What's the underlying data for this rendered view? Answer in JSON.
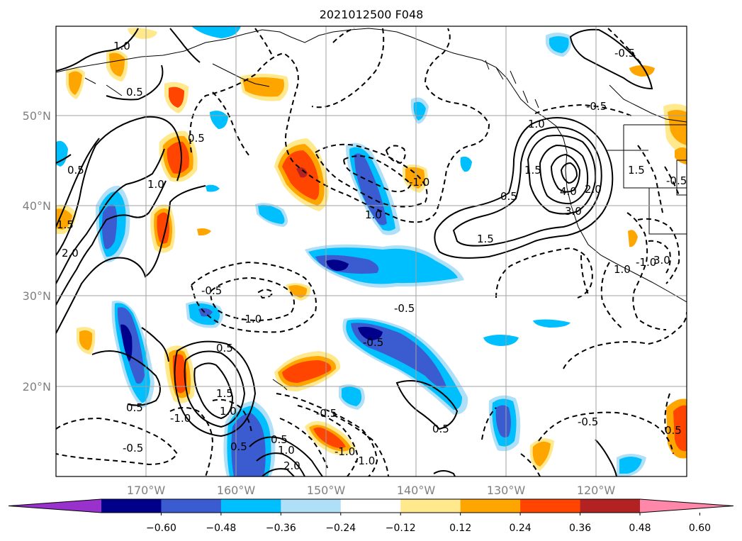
{
  "title": "2021012500 F048",
  "lon_labels": [
    "170°W",
    "160°W",
    "150°W",
    "140°W",
    "130°W",
    "120°W"
  ],
  "lat_labels": [
    "50°N",
    "40°N",
    "30°N",
    "20°N"
  ],
  "colorbar": {
    "ticks": [
      "−0.60",
      "−0.48",
      "−0.36",
      "−0.24",
      "−0.12",
      "0.12",
      "0.24",
      "0.36",
      "0.48",
      "0.60"
    ],
    "colors": [
      "#9932cc",
      "#00008b",
      "#3b5bd0",
      "#00bfff",
      "#b0e0f8",
      "#ffffff",
      "#ffe98c",
      "#ffa500",
      "#ff4500",
      "#b22222",
      "#ff88aa"
    ]
  },
  "contour_labels": [
    "0.5",
    "-0.5",
    "-1.0",
    "1.0",
    "1.5",
    "2.0",
    "3.0",
    "4.0"
  ]
}
